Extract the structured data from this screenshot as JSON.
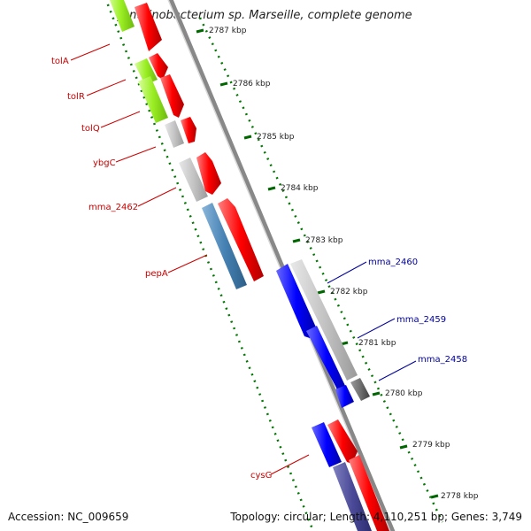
{
  "title": "Janthinobacterium sp. Marseille, complete genome",
  "footer": {
    "accession": "Accession: NC_009659",
    "summary": "Topology: circular; Length: 4,110,251 bp; Genes: 3,749"
  },
  "ticks": [
    "2787 kbp",
    "2786 kbp",
    "2785 kbp",
    "2784 kbp",
    "2783 kbp",
    "2782 kbp",
    "2781 kbp",
    "2780 kbp",
    "2779 kbp",
    "2778 kbp"
  ],
  "genes_left": [
    "tolA",
    "tolR",
    "tolQ",
    "ybgC",
    "mma_2462",
    "pepA",
    "cysG"
  ],
  "genes_right": [
    "mma_2460",
    "mma_2459",
    "mma_2458"
  ],
  "colors": {
    "forward_strand": "#ff0000",
    "reverse_strand": "#0000ff",
    "label_left": "#cc0000",
    "label_right": "#000099",
    "tick_line": "#006600"
  }
}
